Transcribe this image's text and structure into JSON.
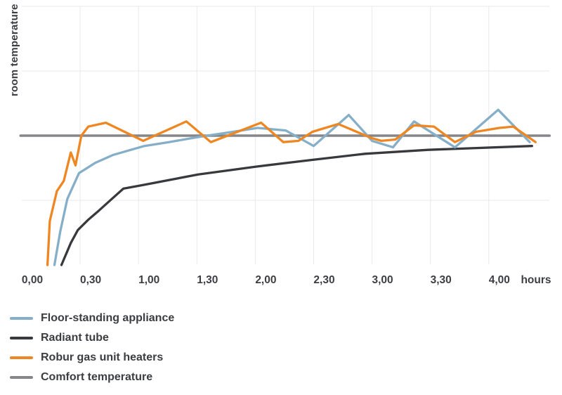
{
  "chart": {
    "y_axis_label": "room temperature",
    "x_axis_unit_label": "hours"
  },
  "chart_data": {
    "type": "line",
    "title": "",
    "xlabel": "hours",
    "ylabel": "room temperature",
    "x_tick_labels": [
      "0,00",
      "0,30",
      "1,00",
      "1,30",
      "2,00",
      "2,30",
      "3,00",
      "3,30",
      "4,00"
    ],
    "x_tick_hours": [
      0,
      0.5,
      1.0,
      1.5,
      2.0,
      2.5,
      3.0,
      3.5,
      4.0
    ],
    "xlim": [
      0,
      4.52
    ],
    "ylim": [
      0,
      2.0
    ],
    "y_gridline_step": 0.5,
    "grid": true,
    "y_scale_note": "no numeric y-axis ticks are shown; values are normalized so comfort temperature = 1.0 and chart bottom = 0",
    "legend_position": "bottom-left",
    "colors": {
      "grid": "#e9e9e9",
      "tick_text": "#3c3e44"
    },
    "series": [
      {
        "name": "Floor-standing appliance",
        "color": "#85aec8",
        "x": [
          0.28,
          0.33,
          0.39,
          0.49,
          0.63,
          0.78,
          1.05,
          1.26,
          1.52,
          1.81,
          2.02,
          2.26,
          2.5,
          2.8,
          3.0,
          3.18,
          3.36,
          3.71,
          4.08,
          4.35
        ],
        "y": [
          0.0,
          0.26,
          0.51,
          0.71,
          0.79,
          0.85,
          0.92,
          0.95,
          0.99,
          1.03,
          1.06,
          1.04,
          0.92,
          1.16,
          0.96,
          0.91,
          1.11,
          0.91,
          1.2,
          0.95
        ]
      },
      {
        "name": "Radiant tube",
        "color": "#37393d",
        "x": [
          0.34,
          0.42,
          0.48,
          0.57,
          0.66,
          0.77,
          0.87,
          1.05,
          1.51,
          2.0,
          2.46,
          2.94,
          3.48,
          4.37
        ],
        "y": [
          0.0,
          0.17,
          0.27,
          0.35,
          0.42,
          0.51,
          0.59,
          0.62,
          0.7,
          0.76,
          0.81,
          0.86,
          0.89,
          0.92
        ]
      },
      {
        "name": "Robur gas unit heaters",
        "color": "#ee8722",
        "x": [
          0.22,
          0.24,
          0.3,
          0.36,
          0.42,
          0.46,
          0.51,
          0.57,
          0.72,
          1.04,
          1.41,
          1.62,
          2.05,
          2.24,
          2.37,
          2.49,
          2.71,
          3.0,
          3.08,
          3.2,
          3.36,
          3.53,
          3.71,
          3.89,
          4.09,
          4.21,
          4.4
        ],
        "y": [
          0.0,
          0.34,
          0.57,
          0.65,
          0.87,
          0.77,
          1.0,
          1.07,
          1.1,
          0.96,
          1.11,
          0.95,
          1.1,
          0.95,
          0.96,
          1.03,
          1.09,
          0.98,
          0.96,
          0.97,
          1.08,
          1.07,
          0.95,
          1.03,
          1.06,
          1.07,
          0.95
        ]
      },
      {
        "name": "Comfort temperature",
        "color": "#85868a",
        "x": [
          -0.01,
          4.52
        ],
        "y": [
          1.0,
          1.0
        ]
      }
    ]
  }
}
